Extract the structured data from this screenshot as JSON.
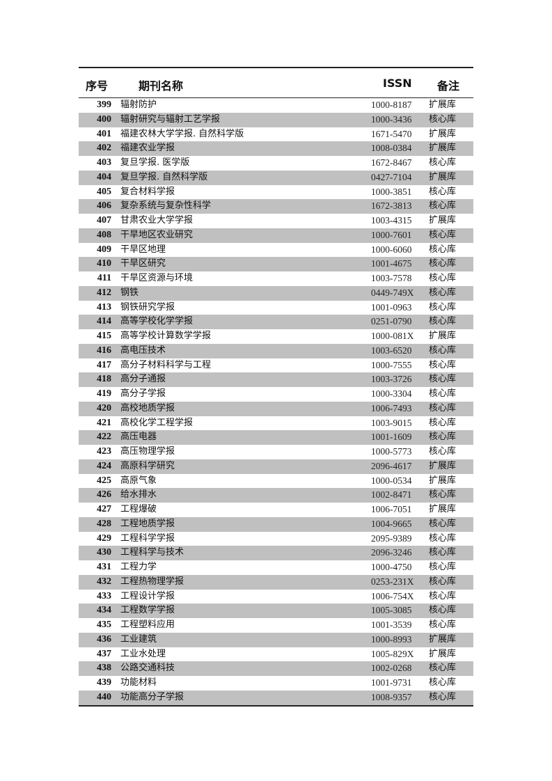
{
  "header": {
    "no": "序号",
    "name": "期刊名称",
    "issn": "ISSN",
    "remark": "备注"
  },
  "rows": [
    {
      "no": "399",
      "name": "辐射防护",
      "issn": "1000-8187",
      "remark": "扩展库"
    },
    {
      "no": "400",
      "name": "辐射研究与辐射工艺学报",
      "issn": "1000-3436",
      "remark": "核心库"
    },
    {
      "no": "401",
      "name": "福建农林大学学报. 自然科学版",
      "issn": "1671-5470",
      "remark": "扩展库"
    },
    {
      "no": "402",
      "name": "福建农业学报",
      "issn": "1008-0384",
      "remark": "扩展库"
    },
    {
      "no": "403",
      "name": "复旦学报. 医学版",
      "issn": "1672-8467",
      "remark": "核心库"
    },
    {
      "no": "404",
      "name": "复旦学报. 自然科学版",
      "issn": "0427-7104",
      "remark": "扩展库"
    },
    {
      "no": "405",
      "name": "复合材料学报",
      "issn": "1000-3851",
      "remark": "核心库"
    },
    {
      "no": "406",
      "name": "复杂系统与复杂性科学",
      "issn": "1672-3813",
      "remark": "核心库"
    },
    {
      "no": "407",
      "name": "甘肃农业大学学报",
      "issn": "1003-4315",
      "remark": "扩展库"
    },
    {
      "no": "408",
      "name": "干旱地区农业研究",
      "issn": "1000-7601",
      "remark": "核心库"
    },
    {
      "no": "409",
      "name": "干旱区地理",
      "issn": "1000-6060",
      "remark": "核心库"
    },
    {
      "no": "410",
      "name": "干旱区研究",
      "issn": "1001-4675",
      "remark": "核心库"
    },
    {
      "no": "411",
      "name": "干旱区资源与环境",
      "issn": "1003-7578",
      "remark": "核心库"
    },
    {
      "no": "412",
      "name": "钢铁",
      "issn": "0449-749X",
      "remark": "核心库"
    },
    {
      "no": "413",
      "name": "钢铁研究学报",
      "issn": "1001-0963",
      "remark": "核心库"
    },
    {
      "no": "414",
      "name": "高等学校化学学报",
      "issn": "0251-0790",
      "remark": "核心库"
    },
    {
      "no": "415",
      "name": "高等学校计算数学学报",
      "issn": "1000-081X",
      "remark": "扩展库"
    },
    {
      "no": "416",
      "name": "高电压技术",
      "issn": "1003-6520",
      "remark": "核心库"
    },
    {
      "no": "417",
      "name": "高分子材料科学与工程",
      "issn": "1000-7555",
      "remark": "核心库"
    },
    {
      "no": "418",
      "name": "高分子通报",
      "issn": "1003-3726",
      "remark": "核心库"
    },
    {
      "no": "419",
      "name": "高分子学报",
      "issn": "1000-3304",
      "remark": "核心库"
    },
    {
      "no": "420",
      "name": "高校地质学报",
      "issn": "1006-7493",
      "remark": "核心库"
    },
    {
      "no": "421",
      "name": "高校化学工程学报",
      "issn": "1003-9015",
      "remark": "核心库"
    },
    {
      "no": "422",
      "name": "高压电器",
      "issn": "1001-1609",
      "remark": "核心库"
    },
    {
      "no": "423",
      "name": "高压物理学报",
      "issn": "1000-5773",
      "remark": "核心库"
    },
    {
      "no": "424",
      "name": "高原科学研究",
      "issn": "2096-4617",
      "remark": "扩展库"
    },
    {
      "no": "425",
      "name": "高原气象",
      "issn": "1000-0534",
      "remark": "扩展库"
    },
    {
      "no": "426",
      "name": "给水排水",
      "issn": "1002-8471",
      "remark": "核心库"
    },
    {
      "no": "427",
      "name": "工程爆破",
      "issn": "1006-7051",
      "remark": "扩展库"
    },
    {
      "no": "428",
      "name": "工程地质学报",
      "issn": "1004-9665",
      "remark": "核心库"
    },
    {
      "no": "429",
      "name": "工程科学学报",
      "issn": "2095-9389",
      "remark": "核心库"
    },
    {
      "no": "430",
      "name": "工程科学与技术",
      "issn": "2096-3246",
      "remark": "核心库"
    },
    {
      "no": "431",
      "name": "工程力学",
      "issn": "1000-4750",
      "remark": "核心库"
    },
    {
      "no": "432",
      "name": "工程热物理学报",
      "issn": "0253-231X",
      "remark": "核心库"
    },
    {
      "no": "433",
      "name": "工程设计学报",
      "issn": "1006-754X",
      "remark": "核心库"
    },
    {
      "no": "434",
      "name": "工程数学学报",
      "issn": "1005-3085",
      "remark": "核心库"
    },
    {
      "no": "435",
      "name": "工程塑料应用",
      "issn": "1001-3539",
      "remark": "核心库"
    },
    {
      "no": "436",
      "name": "工业建筑",
      "issn": "1000-8993",
      "remark": "扩展库"
    },
    {
      "no": "437",
      "name": "工业水处理",
      "issn": "1005-829X",
      "remark": "扩展库"
    },
    {
      "no": "438",
      "name": "公路交通科技",
      "issn": "1002-0268",
      "remark": "核心库"
    },
    {
      "no": "439",
      "name": "功能材料",
      "issn": "1001-9731",
      "remark": "核心库"
    },
    {
      "no": "440",
      "name": "功能高分子学报",
      "issn": "1008-9357",
      "remark": "核心库"
    }
  ],
  "colors": {
    "stripe": "#c0c0c0",
    "rule": "#222222"
  }
}
